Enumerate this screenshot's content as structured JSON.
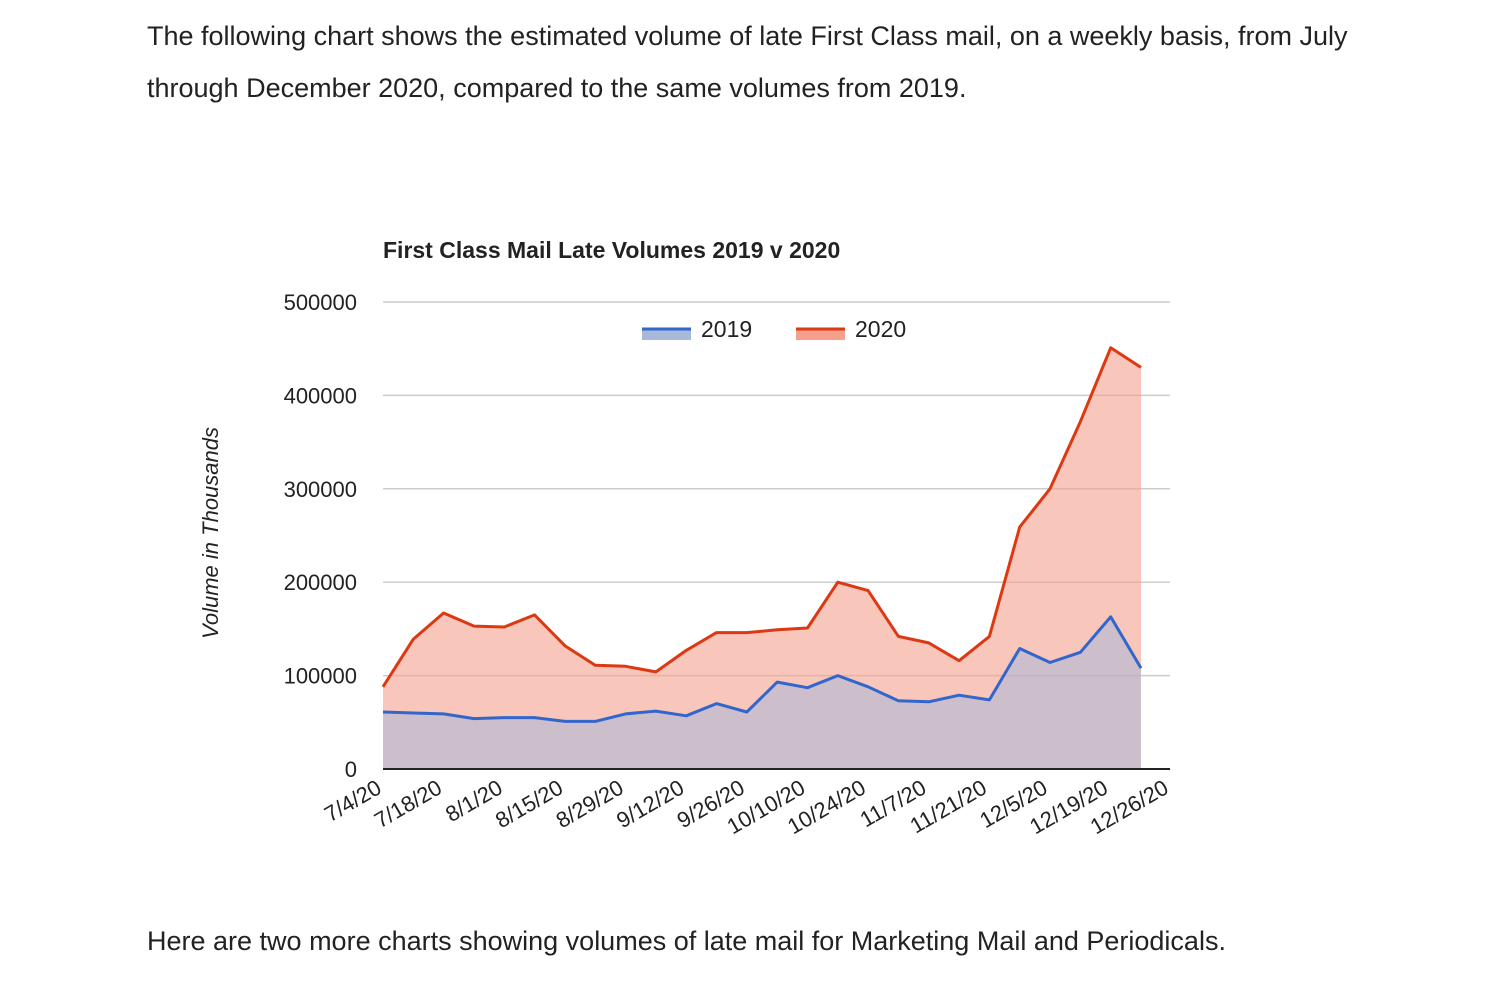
{
  "article": {
    "intro": "The following chart shows the estimated volume of late First Class mail, on a weekly basis, from July through December 2020, compared to the same volumes from 2019.",
    "outro": "Here are two more charts showing volumes of late mail for Marketing Mail and Periodicals."
  },
  "colors": {
    "series_2019": "#3366cc",
    "series_2020": "#dc3912",
    "fill_2019": "#a8b8d8",
    "fill_2020": "#f4a08c",
    "grid": "#cccccc",
    "axis": "#222222"
  },
  "chart_data": {
    "type": "area",
    "title": "First Class Mail Late Volumes 2019 v 2020",
    "xlabel": "",
    "ylabel": "Volume in Thousands",
    "ylim": [
      0,
      500000
    ],
    "yticks": [
      "0",
      "100000",
      "200000",
      "300000",
      "400000",
      "500000"
    ],
    "grid": true,
    "legend_position": "top",
    "x_tick_labels": [
      "7/4/20",
      "7/18/20",
      "8/1/20",
      "8/15/20",
      "8/29/20",
      "9/12/20",
      "9/26/20",
      "10/10/20",
      "10/24/20",
      "11/7/20",
      "11/21/20",
      "12/5/20",
      "12/19/20",
      "12/26/20"
    ],
    "categories": [
      "7/4/20",
      "7/11/20",
      "7/18/20",
      "7/25/20",
      "8/1/20",
      "8/8/20",
      "8/15/20",
      "8/22/20",
      "8/29/20",
      "9/5/20",
      "9/12/20",
      "9/19/20",
      "9/26/20",
      "10/3/20",
      "10/10/20",
      "10/17/20",
      "10/24/20",
      "10/31/20",
      "11/7/20",
      "11/14/20",
      "11/21/20",
      "11/28/20",
      "12/5/20",
      "12/12/20",
      "12/19/20",
      "12/26/20"
    ],
    "series": [
      {
        "name": "2019",
        "values": [
          61000,
          60000,
          59000,
          54000,
          55000,
          55000,
          51000,
          51000,
          59000,
          62000,
          57000,
          70000,
          61000,
          93000,
          87000,
          100000,
          88000,
          73000,
          72000,
          79000,
          74000,
          129000,
          114000,
          125000,
          163000,
          108000
        ]
      },
      {
        "name": "2020",
        "values": [
          88000,
          139000,
          167000,
          153000,
          152000,
          165000,
          132000,
          111000,
          110000,
          104000,
          127000,
          146000,
          146000,
          149000,
          151000,
          200000,
          191000,
          142000,
          135000,
          116000,
          142000,
          259000,
          300000,
          372000,
          451000,
          430000
        ]
      }
    ]
  }
}
